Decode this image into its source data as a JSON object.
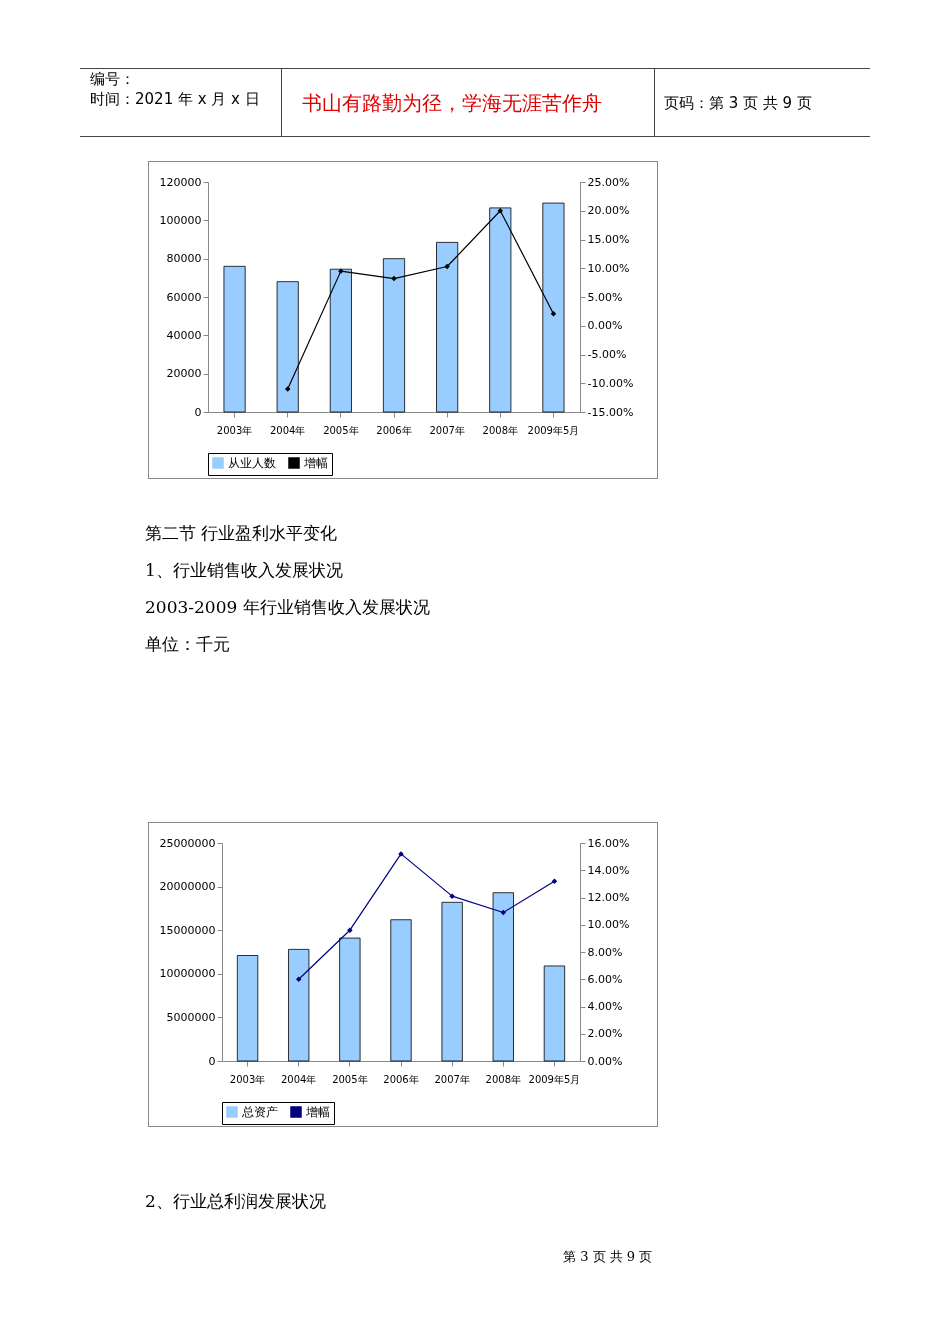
{
  "chart_data": [
    {
      "type": "bar",
      "categories": [
        "2003年",
        "2004年",
        "2005年",
        "2006年",
        "2007年",
        "2008年",
        "2009年5月"
      ],
      "series": [
        {
          "name": "从业人数",
          "color": "#99ccff",
          "values": [
            76000,
            68000,
            74500,
            80000,
            88500,
            106500,
            109000
          ]
        },
        {
          "name": "增幅",
          "type": "line",
          "axis": "y2",
          "color": "#000000",
          "values": [
            null,
            -11.0,
            9.5,
            8.2,
            10.3,
            20.0,
            2.1
          ]
        }
      ],
      "ylim": [
        0,
        120000
      ],
      "yticks": [
        0,
        20000,
        40000,
        60000,
        80000,
        100000,
        120000
      ],
      "y2lim": [
        -15,
        25
      ],
      "y2ticks": [
        {
          "value": -15,
          "label": "-15.00%"
        },
        {
          "value": -10,
          "label": "-10.00%"
        },
        {
          "value": -5,
          "label": "-5.00%"
        },
        {
          "value": 0,
          "label": "0.00%"
        },
        {
          "value": 5,
          "label": "5.00%"
        },
        {
          "value": 10,
          "label": "10.00%"
        },
        {
          "value": 15,
          "label": "15.00%"
        },
        {
          "value": 20,
          "label": "20.00%"
        },
        {
          "value": 25,
          "label": "25.00%"
        }
      ],
      "legend": "bottom",
      "marker": "diamond",
      "annotations": [
        "编号：",
        "时间：2021 年 x 月 x 日",
        "书山有路勤为径，学海无涯苦作舟",
        "页码：第 3 页 共 9 页"
      ]
    },
    {
      "type": "bar",
      "categories": [
        "2003年",
        "2004年",
        "2005年",
        "2006年",
        "2007年",
        "2008年",
        "2009年5月"
      ],
      "series": [
        {
          "name": "总资产",
          "color": "#99ccff",
          "values": [
            12100000,
            12800000,
            14100000,
            16200000,
            18200000,
            19300000,
            10900000
          ]
        },
        {
          "name": "增幅",
          "type": "line",
          "axis": "y2",
          "color": "#000080",
          "values": [
            null,
            6.0,
            9.6,
            15.2,
            12.1,
            10.9,
            13.2
          ]
        }
      ],
      "ylim": [
        0,
        25000000
      ],
      "yticks": [
        0,
        5000000,
        10000000,
        15000000,
        20000000,
        25000000
      ],
      "y2lim": [
        0,
        16
      ],
      "y2ticks": [
        {
          "value": 0,
          "label": "0.00%"
        },
        {
          "value": 2,
          "label": "2.00%"
        },
        {
          "value": 4,
          "label": "4.00%"
        },
        {
          "value": 6,
          "label": "6.00%"
        },
        {
          "value": 8,
          "label": "8.00%"
        },
        {
          "value": 10,
          "label": "10.00%"
        },
        {
          "value": 12,
          "label": "12.00%"
        },
        {
          "value": 14,
          "label": "14.00%"
        },
        {
          "value": 16,
          "label": "16.00%"
        }
      ],
      "legend": "bottom",
      "marker": "diamond",
      "annotations": [
        "第二节  行业盈利水平变化",
        "1、行业销售收入发展状况",
        "2003-2009 年行业销售收入发展状况",
        "单位：千元",
        "2、行业总利润发展状况",
        "第 3 页 共 9 页"
      ]
    }
  ]
}
